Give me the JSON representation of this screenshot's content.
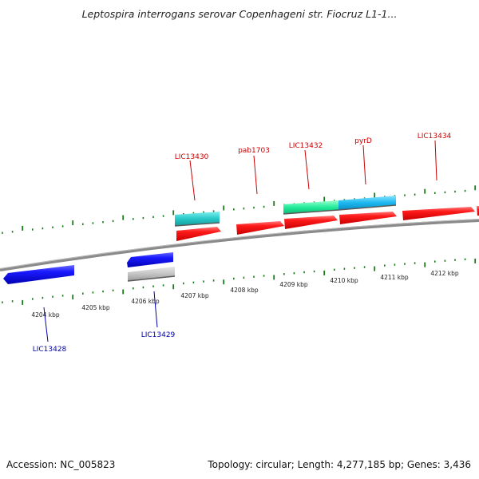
{
  "title": "Leptospira interrogans serovar Copenhageni str. Fiocruz L1-1...",
  "footer": {
    "accession": "Accession: NC_005823",
    "topology": "Topology: circular; Length: 4,277,185 bp; Genes: 3,436"
  },
  "colors": {
    "forward_label": "#cc0000",
    "reverse_label": "#0000aa",
    "tick": "#1a7a1a",
    "backbone": "#888888"
  },
  "kbp_labels": [
    "4204 kbp",
    "4205 kbp",
    "4206 kbp",
    "4207 kbp",
    "4208 kbp",
    "4209 kbp",
    "4210 kbp",
    "4211 kbp",
    "4212 kbp"
  ],
  "gene_labels": {
    "top": [
      "LIC13430",
      "pab1703",
      "LIC13432",
      "pyrD",
      "LIC13434"
    ],
    "bottom": [
      "LIC13428",
      "LIC13429"
    ]
  }
}
